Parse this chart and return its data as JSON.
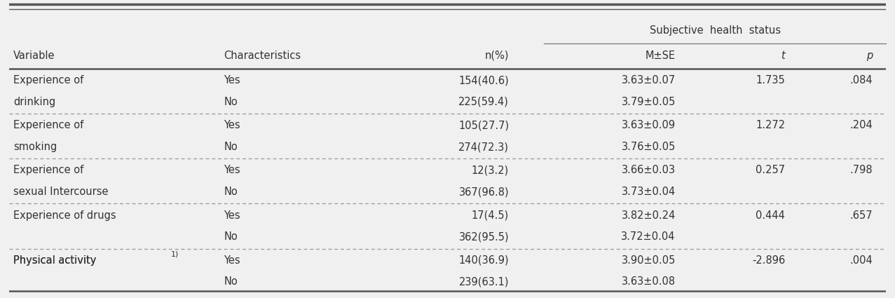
{
  "col_header_row2": [
    "Variable",
    "Characteristics",
    "n(%)",
    "M±SE",
    "t",
    "p"
  ],
  "span_label": "Subjective  health  status",
  "rows": [
    [
      "Experience of",
      "drinking",
      "Yes",
      "No",
      "154(40.6)",
      "225(59.4)",
      "3.63±0.07",
      "3.79±0.05",
      "1.735",
      ".084"
    ],
    [
      "Experience of",
      "smoking",
      "Yes",
      "No",
      "105(27.7)",
      "274(72.3)",
      "3.63±0.09",
      "3.76±0.05",
      "1.272",
      ".204"
    ],
    [
      "Experience of",
      "sexual Intercourse",
      "Yes",
      "No",
      "12(3.2)",
      "367(96.8)",
      "3.66±0.03",
      "3.73±0.04",
      "0.257",
      ".798"
    ],
    [
      "Experience of drugs",
      "",
      "Yes",
      "No",
      "17(4.5)",
      "362(95.5)",
      "3.82±0.24",
      "3.72±0.04",
      "0.444",
      ".657"
    ],
    [
      "Physical activity",
      "",
      "Yes",
      "No",
      "140(36.9)",
      "239(63.1)",
      "3.90±0.05",
      "3.63±0.08",
      "-2.896",
      ".004"
    ]
  ],
  "physical_activity_superscript": "1)",
  "text_color": "#333333",
  "font_size": 10.5,
  "bg_color": "#f0f0f0"
}
